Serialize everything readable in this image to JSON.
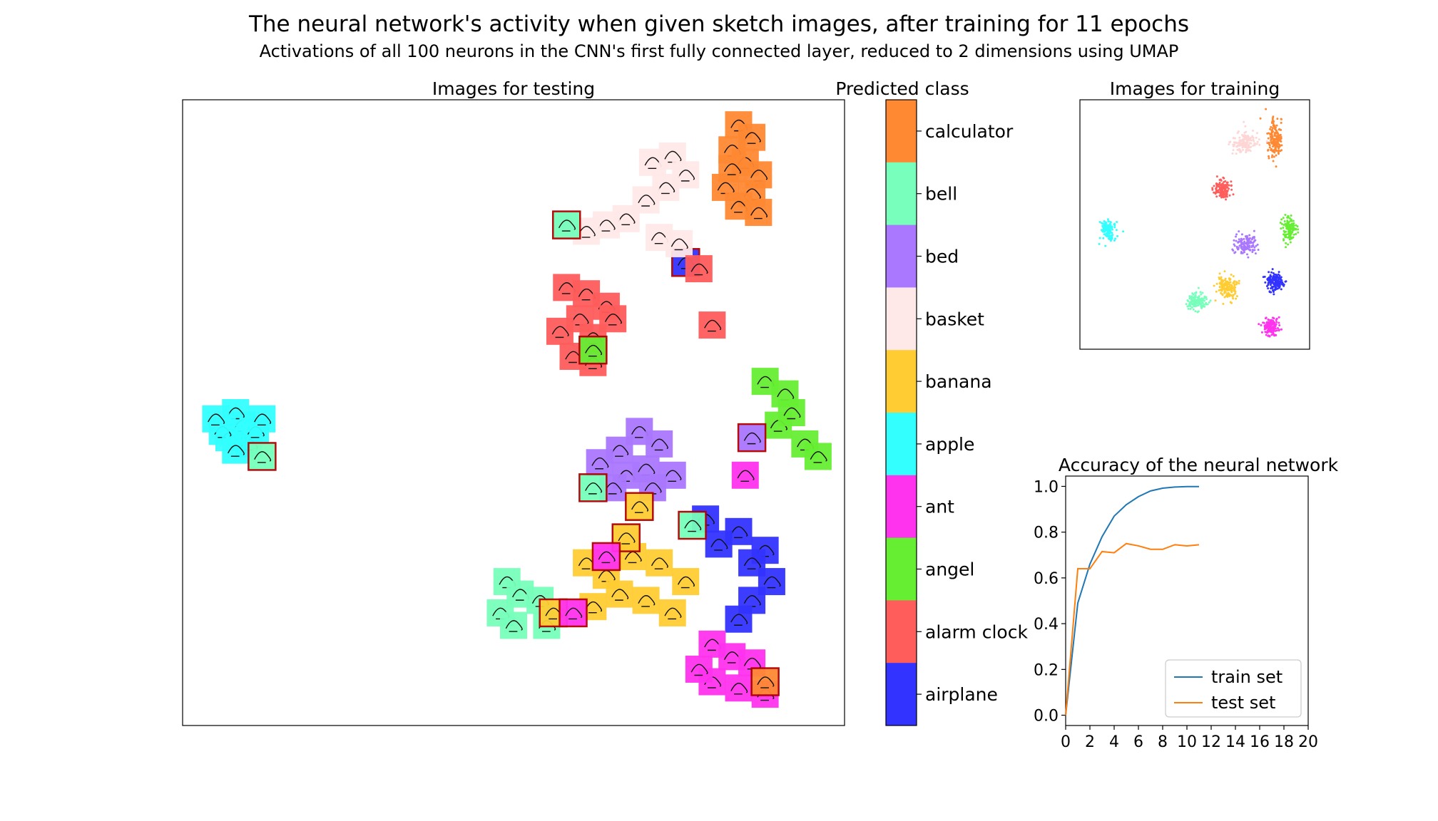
{
  "title": "The neural network's activity when given sketch images, after training for 11 epochs",
  "subtitle": "Activations of all 100 neurons in the CNN's first fully connected layer, reduced to 2 dimensions using UMAP",
  "colors": {
    "airplane": "#3333ff",
    "alarm clock": "#ff5c5c",
    "angel": "#66ee33",
    "ant": "#ff33ee",
    "apple": "#33ffff",
    "banana": "#ffcc33",
    "basket": "#ffe8e8",
    "bed": "#aa77ff",
    "bell": "#77ffbb",
    "calculator": "#ff8833"
  },
  "chart_data": [
    {
      "type": "scatter",
      "title": "Images for testing",
      "description_axes": "none",
      "clusters": [
        {
          "class": "apple",
          "points": [
            [
              0.07,
              0.54
            ],
            [
              0.09,
              0.52
            ],
            [
              0.08,
              0.5
            ],
            [
              0.06,
              0.53
            ],
            [
              0.1,
              0.55
            ],
            [
              0.11,
              0.53
            ],
            [
              0.05,
              0.51
            ],
            [
              0.08,
              0.56
            ],
            [
              0.12,
              0.51
            ]
          ],
          "misclassified": [
            [
              0.12,
              0.57,
              "bell"
            ]
          ]
        },
        {
          "class": "calculator",
          "points": [
            [
              0.84,
              0.04
            ],
            [
              0.86,
              0.06
            ],
            [
              0.83,
              0.08
            ],
            [
              0.85,
              0.1
            ],
            [
              0.87,
              0.12
            ],
            [
              0.82,
              0.14
            ],
            [
              0.86,
              0.15
            ],
            [
              0.84,
              0.17
            ],
            [
              0.87,
              0.18
            ],
            [
              0.83,
              0.11
            ]
          ],
          "misclassified": [
            [
              0.76,
              0.26,
              "airplane"
            ]
          ]
        },
        {
          "class": "basket",
          "points": [
            [
              0.71,
              0.1
            ],
            [
              0.74,
              0.09
            ],
            [
              0.76,
              0.12
            ],
            [
              0.73,
              0.14
            ],
            [
              0.7,
              0.16
            ],
            [
              0.67,
              0.19
            ],
            [
              0.64,
              0.2
            ],
            [
              0.61,
              0.21
            ],
            [
              0.58,
              0.2
            ],
            [
              0.72,
              0.22
            ],
            [
              0.75,
              0.23
            ]
          ],
          "misclassified": []
        },
        {
          "class": "alarm clock",
          "points": [
            [
              0.58,
              0.3
            ],
            [
              0.61,
              0.31
            ],
            [
              0.64,
              0.33
            ],
            [
              0.6,
              0.35
            ],
            [
              0.57,
              0.37
            ],
            [
              0.62,
              0.38
            ],
            [
              0.65,
              0.35
            ],
            [
              0.59,
              0.41
            ],
            [
              0.62,
              0.42
            ],
            [
              0.8,
              0.36
            ],
            [
              0.78,
              0.27
            ]
          ],
          "misclassified": [
            [
              0.58,
              0.2,
              "bell"
            ],
            [
              0.62,
              0.4,
              "angel"
            ]
          ]
        },
        {
          "class": "angel",
          "points": [
            [
              0.88,
              0.45
            ],
            [
              0.91,
              0.47
            ],
            [
              0.9,
              0.52
            ],
            [
              0.94,
              0.55
            ],
            [
              0.96,
              0.57
            ],
            [
              0.92,
              0.5
            ]
          ],
          "misclassified": []
        },
        {
          "class": "bed",
          "points": [
            [
              0.69,
              0.53
            ],
            [
              0.72,
              0.55
            ],
            [
              0.66,
              0.56
            ],
            [
              0.63,
              0.58
            ],
            [
              0.67,
              0.6
            ],
            [
              0.7,
              0.59
            ],
            [
              0.74,
              0.6
            ],
            [
              0.71,
              0.62
            ],
            [
              0.65,
              0.62
            ]
          ],
          "misclassified": [
            [
              0.62,
              0.62,
              "bell"
            ],
            [
              0.86,
              0.54,
              "bed"
            ]
          ]
        },
        {
          "class": "banana",
          "points": [
            [
              0.61,
              0.74
            ],
            [
              0.64,
              0.76
            ],
            [
              0.68,
              0.73
            ],
            [
              0.72,
              0.74
            ],
            [
              0.66,
              0.79
            ],
            [
              0.7,
              0.8
            ],
            [
              0.74,
              0.82
            ],
            [
              0.62,
              0.81
            ],
            [
              0.76,
              0.77
            ]
          ],
          "misclassified": [
            [
              0.69,
              0.65,
              "banana"
            ],
            [
              0.67,
              0.7,
              "banana"
            ],
            [
              0.64,
              0.73,
              "ant"
            ]
          ]
        },
        {
          "class": "bell",
          "points": [
            [
              0.49,
              0.77
            ],
            [
              0.51,
              0.79
            ],
            [
              0.48,
              0.82
            ],
            [
              0.5,
              0.84
            ],
            [
              0.54,
              0.8
            ],
            [
              0.55,
              0.84
            ]
          ],
          "misclassified": [
            [
              0.56,
              0.82,
              "banana"
            ],
            [
              0.59,
              0.82,
              "ant"
            ]
          ]
        },
        {
          "class": "airplane",
          "points": [
            [
              0.84,
              0.69
            ],
            [
              0.88,
              0.72
            ],
            [
              0.86,
              0.74
            ],
            [
              0.89,
              0.77
            ],
            [
              0.86,
              0.8
            ],
            [
              0.84,
              0.83
            ],
            [
              0.81,
              0.71
            ],
            [
              0.79,
              0.67
            ]
          ],
          "misclassified": [
            [
              0.77,
              0.68,
              "bell"
            ]
          ]
        },
        {
          "class": "ant",
          "points": [
            [
              0.8,
              0.87
            ],
            [
              0.83,
              0.89
            ],
            [
              0.86,
              0.9
            ],
            [
              0.8,
              0.93
            ],
            [
              0.84,
              0.94
            ],
            [
              0.88,
              0.95
            ],
            [
              0.78,
              0.91
            ],
            [
              0.85,
              0.6
            ]
          ],
          "misclassified": [
            [
              0.88,
              0.93,
              "calculator"
            ]
          ]
        }
      ]
    },
    {
      "type": "heatmap",
      "title": "Predicted class",
      "labels": [
        "calculator",
        "bell",
        "bed",
        "basket",
        "banana",
        "apple",
        "ant",
        "angel",
        "alarm clock",
        "airplane"
      ]
    },
    {
      "type": "scatter",
      "title": "Images for training",
      "clusters": [
        {
          "class": "apple",
          "cx": 0.12,
          "cy": 0.52,
          "sx": 0.035,
          "sy": 0.04,
          "n": 140
        },
        {
          "class": "calculator",
          "cx": 0.85,
          "cy": 0.16,
          "sx": 0.03,
          "sy": 0.07,
          "n": 180
        },
        {
          "class": "basket",
          "cx": 0.72,
          "cy": 0.17,
          "sx": 0.06,
          "sy": 0.04,
          "n": 150
        },
        {
          "class": "alarm clock",
          "cx": 0.62,
          "cy": 0.36,
          "sx": 0.035,
          "sy": 0.04,
          "n": 140
        },
        {
          "class": "angel",
          "cx": 0.91,
          "cy": 0.52,
          "sx": 0.03,
          "sy": 0.05,
          "n": 120
        },
        {
          "class": "bed",
          "cx": 0.72,
          "cy": 0.58,
          "sx": 0.05,
          "sy": 0.04,
          "n": 130
        },
        {
          "class": "banana",
          "cx": 0.64,
          "cy": 0.75,
          "sx": 0.05,
          "sy": 0.045,
          "n": 150
        },
        {
          "class": "airplane",
          "cx": 0.85,
          "cy": 0.73,
          "sx": 0.035,
          "sy": 0.035,
          "n": 160
        },
        {
          "class": "bell",
          "cx": 0.51,
          "cy": 0.81,
          "sx": 0.04,
          "sy": 0.035,
          "n": 140
        },
        {
          "class": "ant",
          "cx": 0.83,
          "cy": 0.91,
          "sx": 0.04,
          "sy": 0.035,
          "n": 150
        }
      ]
    },
    {
      "type": "line",
      "title": "Accuracy of the neural network",
      "x": [
        0,
        1,
        2,
        3,
        4,
        5,
        6,
        7,
        8,
        9,
        10,
        11
      ],
      "series": [
        {
          "name": "train set",
          "color": "#1f77b4",
          "values": [
            0.0,
            0.49,
            0.66,
            0.78,
            0.87,
            0.92,
            0.955,
            0.98,
            0.992,
            0.997,
            0.999,
            0.999
          ]
        },
        {
          "name": "test set",
          "color": "#ff7f0e",
          "values": [
            0.0,
            0.64,
            0.64,
            0.715,
            0.71,
            0.75,
            0.74,
            0.725,
            0.725,
            0.745,
            0.74,
            0.745
          ]
        }
      ],
      "xlim": [
        0,
        20
      ],
      "ylim": [
        0,
        1.0
      ],
      "xticks": [
        "0",
        "2",
        "4",
        "6",
        "8",
        "10",
        "12",
        "14",
        "16",
        "18",
        "20"
      ],
      "yticks": [
        "0.0",
        "0.2",
        "0.4",
        "0.6",
        "0.8",
        "1.0"
      ],
      "legend": "lower-right"
    }
  ]
}
